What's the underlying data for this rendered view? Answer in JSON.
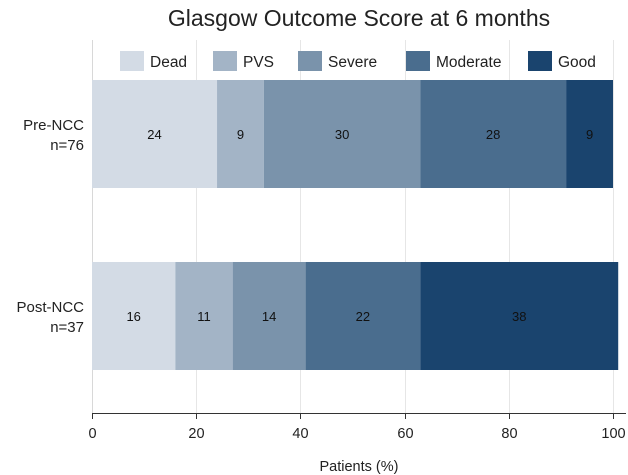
{
  "chart_data": {
    "type": "bar",
    "orientation": "horizontal",
    "stacked": true,
    "title": "Glasgow Outcome Score at 6 months",
    "xlabel": "Patients (%)",
    "ylabel": "",
    "xlim": [
      0,
      100
    ],
    "xticks": [
      0,
      20,
      40,
      60,
      80,
      100
    ],
    "grid": true,
    "legend_position": "top",
    "categories": [
      {
        "line1": "Pre-NCC",
        "line2": "n=76"
      },
      {
        "line1": "Post-NCC",
        "line2": "n=37"
      }
    ],
    "series": [
      {
        "name": "Dead",
        "color": "#d3dbe5",
        "values": [
          24,
          16
        ]
      },
      {
        "name": "PVS",
        "color": "#a3b4c6",
        "values": [
          9,
          11
        ]
      },
      {
        "name": "Severe",
        "color": "#7a93ab",
        "values": [
          30,
          14
        ]
      },
      {
        "name": "Moderate",
        "color": "#4a6d8e",
        "values": [
          28,
          22
        ]
      },
      {
        "name": "Good",
        "color": "#1a446e",
        "values": [
          9,
          38
        ]
      }
    ]
  }
}
